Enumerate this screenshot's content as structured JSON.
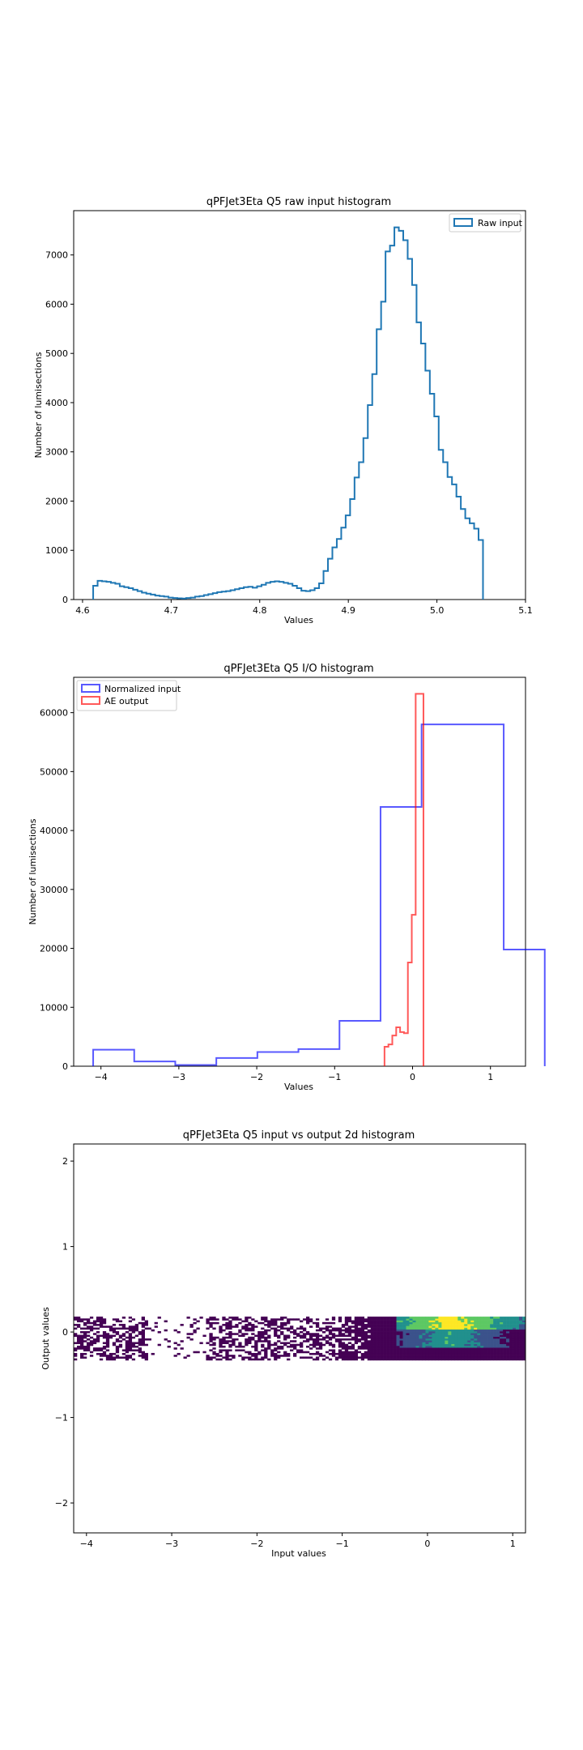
{
  "chart_data": [
    {
      "type": "histogram-step",
      "title": "qPFJet3Eta Q5 raw input histogram",
      "xlabel": "Values",
      "ylabel": "Number of lumisections",
      "xlim": [
        4.59,
        5.1
      ],
      "ylim": [
        0,
        7900
      ],
      "xticks": [
        4.6,
        4.7,
        4.8,
        4.9,
        5.0,
        5.1
      ],
      "xtick_labels": [
        "4.6",
        "4.7",
        "4.8",
        "4.9",
        "5.0",
        "5.1"
      ],
      "yticks": [
        0,
        1000,
        2000,
        3000,
        4000,
        5000,
        6000,
        7000
      ],
      "ytick_labels": [
        "0",
        "1000",
        "2000",
        "3000",
        "4000",
        "5000",
        "6000",
        "7000"
      ],
      "legend": "upper-right",
      "series": [
        {
          "name": "Raw input",
          "color": "#1f77b4",
          "bin_start": 4.612,
          "bin_width": 0.005,
          "counts": [
            280,
            380,
            370,
            360,
            340,
            320,
            270,
            250,
            230,
            200,
            170,
            140,
            120,
            100,
            80,
            70,
            60,
            40,
            30,
            25,
            20,
            30,
            40,
            60,
            70,
            90,
            110,
            130,
            150,
            160,
            170,
            190,
            210,
            230,
            250,
            260,
            240,
            270,
            300,
            340,
            360,
            370,
            360,
            340,
            320,
            280,
            230,
            180,
            170,
            190,
            230,
            330,
            580,
            830,
            1060,
            1230,
            1460,
            1710,
            2040,
            2480,
            2790,
            3280,
            3950,
            4580,
            5490,
            6050,
            7070,
            7190,
            7560,
            7490,
            7300,
            6920,
            6390,
            5630,
            5200,
            4650,
            4180,
            3720,
            3040,
            2790,
            2490,
            2340,
            2090,
            1840,
            1650,
            1550,
            1440,
            1210
          ]
        }
      ]
    },
    {
      "type": "histogram-step",
      "title": "qPFJet3Eta Q5 I/O histogram",
      "xlabel": "Values",
      "ylabel": "Number of lumisections",
      "xlim": [
        -4.35,
        1.45
      ],
      "ylim": [
        0,
        66000
      ],
      "xticks": [
        -4,
        -3,
        -2,
        -1,
        0,
        1
      ],
      "xtick_labels": [
        "−4",
        "−3",
        "−2",
        "−1",
        "0",
        "1"
      ],
      "yticks": [
        0,
        10000,
        20000,
        30000,
        40000,
        50000,
        60000
      ],
      "ytick_labels": [
        "0",
        "10000",
        "20000",
        "30000",
        "40000",
        "50000",
        "60000"
      ],
      "legend": "upper-left",
      "series": [
        {
          "name": "Normalized input",
          "color": "#0000ff",
          "bin_start": -4.1,
          "bin_width": 0.527,
          "counts": [
            2800,
            800,
            200,
            1400,
            2400,
            2900,
            7700,
            44000,
            58000,
            58000,
            19800
          ]
        },
        {
          "name": "AE output",
          "color": "#ff0000",
          "bin_start": -0.36,
          "bin_width": 0.05,
          "counts": [
            3300,
            3700,
            5200,
            6600,
            5800,
            5600,
            17600,
            25700,
            63200,
            63200
          ]
        }
      ]
    },
    {
      "type": "heatmap",
      "title": "qPFJet3Eta Q5 input vs output 2d histogram",
      "xlabel": "Input values",
      "ylabel": "Output values",
      "xlim": [
        -4.15,
        1.15
      ],
      "ylim": [
        -2.35,
        2.2
      ],
      "xticks": [
        -4,
        -3,
        -2,
        -1,
        0,
        1
      ],
      "xtick_labels": [
        "−4",
        "−3",
        "−2",
        "−1",
        "0",
        "1"
      ],
      "yticks": [
        -2,
        -1,
        0,
        1,
        2
      ],
      "ytick_labels": [
        "−2",
        "−1",
        "0",
        "1",
        "2"
      ],
      "band_y": [
        -0.33,
        0.18
      ],
      "colormap": [
        "#440154",
        "#3b528b",
        "#21908d",
        "#5dc863",
        "#fde725"
      ]
    }
  ]
}
